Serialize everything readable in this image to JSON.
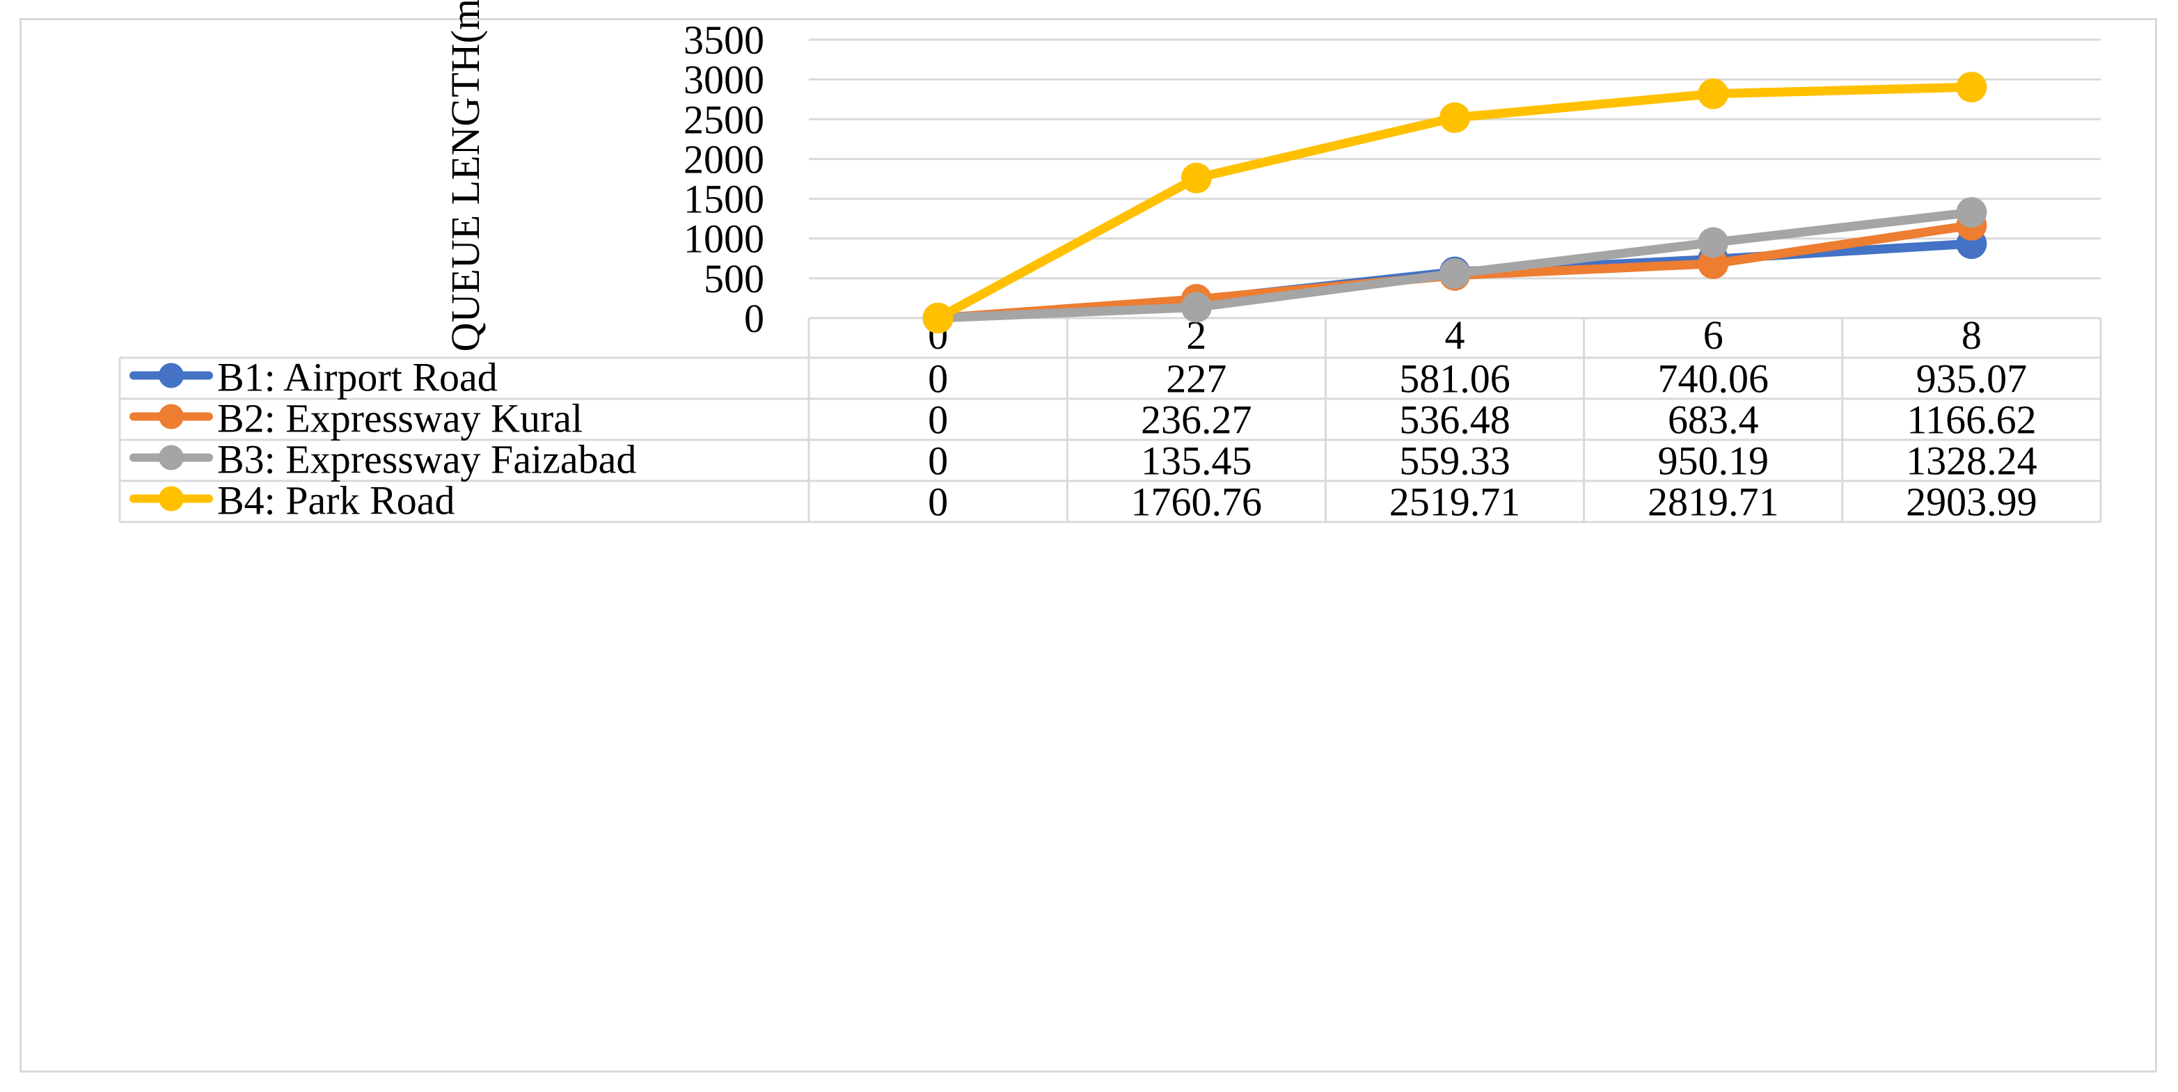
{
  "chart_data": {
    "type": "line",
    "title": "",
    "xlabel": "",
    "ylabel": "QUEUE LENGTH(m)",
    "ylim": [
      0,
      3500
    ],
    "yticks": [
      0,
      500,
      1000,
      1500,
      2000,
      2500,
      3000,
      3500
    ],
    "grid": true,
    "legend": "data-table-bottom",
    "x": [
      0,
      2,
      4,
      6,
      8
    ],
    "x_labels": [
      "0",
      "2",
      "4",
      "6",
      "8"
    ],
    "series": [
      {
        "name": "B1: Airport Road",
        "color": "#4472c4",
        "values": [
          0,
          227,
          581.06,
          740.06,
          935.07
        ],
        "labels": [
          "0",
          "227",
          "581.06",
          "740.06",
          "935.07"
        ]
      },
      {
        "name": "B2: Expressway Kural",
        "color": "#ed7d31",
        "values": [
          0,
          236.27,
          536.48,
          683.4,
          1166.62
        ],
        "labels": [
          "0",
          "236.27",
          "536.48",
          "683.4",
          "1166.62"
        ]
      },
      {
        "name": "B3: Expressway Faizabad",
        "color": "#a5a5a5",
        "values": [
          0,
          135.45,
          559.33,
          950.19,
          1328.24
        ],
        "labels": [
          "0",
          "135.45",
          "559.33",
          "950.19",
          "1328.24"
        ]
      },
      {
        "name": "B4: Park Road",
        "color": "#ffc000",
        "values": [
          0,
          1760.76,
          2519.71,
          2819.71,
          2903.99
        ],
        "labels": [
          "0",
          "1760.76",
          "2519.71",
          "2819.71",
          "2903.99"
        ]
      }
    ]
  }
}
